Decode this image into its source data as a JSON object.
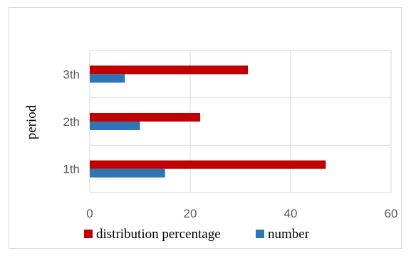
{
  "chart_data": {
    "type": "bar",
    "orientation": "horizontal",
    "categories": [
      "1th",
      "2th",
      "3th"
    ],
    "series": [
      {
        "name": "number",
        "values": [
          15,
          10,
          7
        ],
        "color": "#2E75B6"
      },
      {
        "name": "distribution percentage",
        "values": [
          47,
          22,
          31.5
        ],
        "color": "#C00000"
      }
    ],
    "xlim": [
      0,
      60
    ],
    "xticks": [
      "0",
      "20",
      "40",
      "60"
    ],
    "ylabel": "period",
    "xlabel": "",
    "legend_order": [
      "distribution percentage",
      "number"
    ],
    "legend_position": "bottom",
    "grid": true
  }
}
